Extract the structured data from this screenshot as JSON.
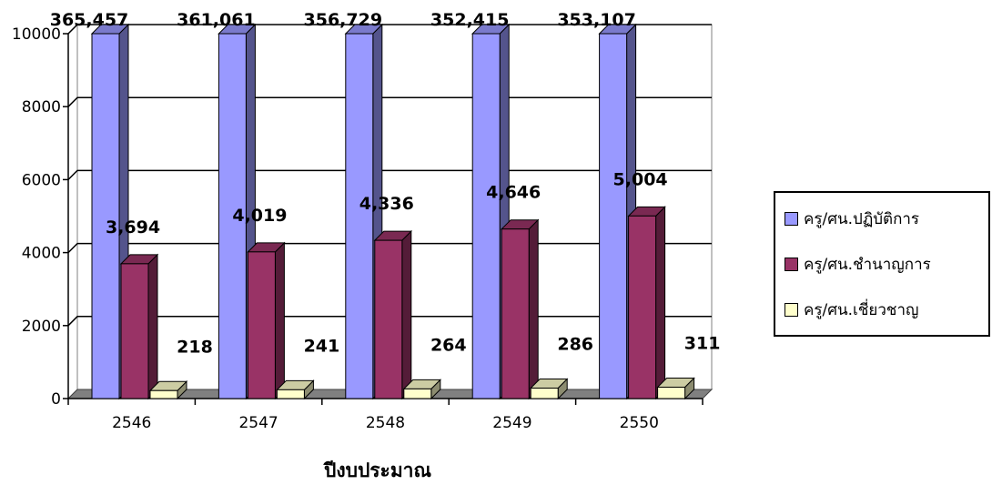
{
  "chart_data": {
    "type": "bar",
    "categories": [
      "2546",
      "2547",
      "2548",
      "2549",
      "2550"
    ],
    "xlabel": "ปีงบประมาณ",
    "ylabel": "",
    "ylim": [
      0,
      10000
    ],
    "yticks": [
      "0",
      "2000",
      "4000",
      "6000",
      "8000",
      "10000"
    ],
    "grid": true,
    "legend_position": "right",
    "series": [
      {
        "name": "ครู/ศน.ปฏิบัติการ",
        "values": [
          365457,
          361061,
          356729,
          352415,
          353107
        ],
        "labels": [
          "365,457",
          "361,061",
          "356,729",
          "352,415",
          "353,107"
        ],
        "color": "#9999ff"
      },
      {
        "name": "ครู/ศน.ชำนาญการ",
        "values": [
          3694,
          4019,
          4336,
          4646,
          5004
        ],
        "labels": [
          "3,694",
          "4,019",
          "4,336",
          "4,646",
          "5,004"
        ],
        "color": "#993366"
      },
      {
        "name": "ครู/ศน.เชี่ยวชาญ",
        "values": [
          218,
          241,
          264,
          286,
          311
        ],
        "labels": [
          "218",
          "241",
          "264",
          "286",
          "311"
        ],
        "color": "#ffffcc"
      }
    ]
  }
}
